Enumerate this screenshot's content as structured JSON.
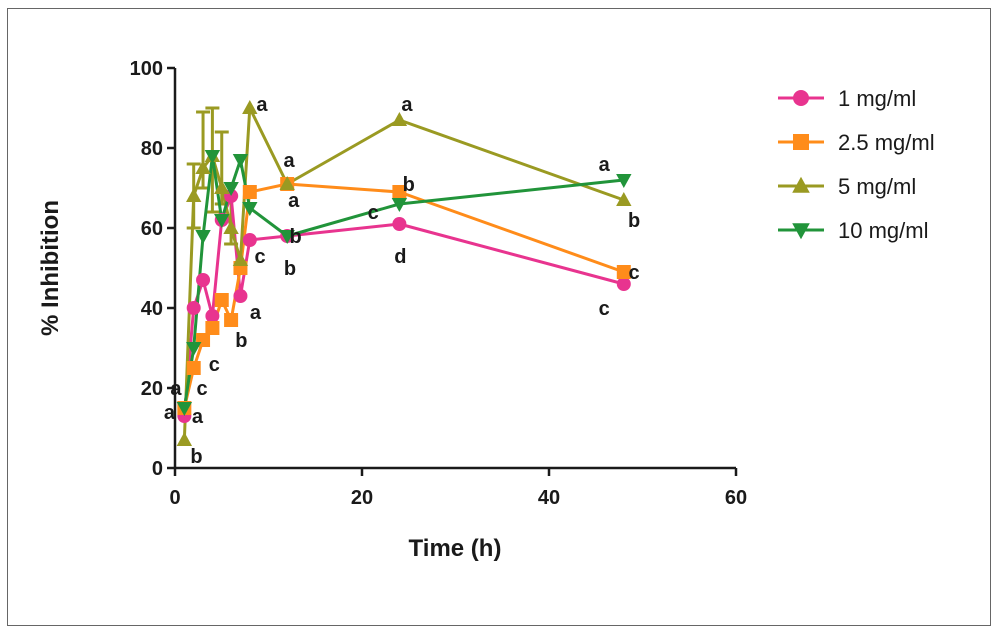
{
  "chart_data": {
    "type": "line",
    "title": "",
    "xlabel": "Time (h)",
    "ylabel": "% Inhibition",
    "xlim": [
      0,
      60
    ],
    "ylim": [
      0,
      100
    ],
    "xticks": [
      0,
      20,
      40,
      60
    ],
    "yticks": [
      0,
      20,
      40,
      60,
      80,
      100
    ],
    "grid": false,
    "legend_position": "right",
    "series": [
      {
        "name": "1 mg/ml",
        "color": "#e8348f",
        "marker": "circle",
        "x": [
          1,
          2,
          3,
          4,
          5,
          6,
          7,
          8,
          12,
          24,
          48
        ],
        "y": [
          13,
          40,
          47,
          38,
          62,
          68,
          43,
          57,
          58,
          61,
          46
        ]
      },
      {
        "name": "2.5 mg/ml",
        "color": "#ff8c1a",
        "marker": "square",
        "x": [
          1,
          2,
          3,
          4,
          5,
          6,
          7,
          8,
          12,
          24,
          48
        ],
        "y": [
          15,
          25,
          32,
          35,
          42,
          37,
          50,
          69,
          71,
          69,
          49
        ]
      },
      {
        "name": "5 mg/ml",
        "color": "#9a9a22",
        "marker": "triangle-up",
        "x": [
          1,
          2,
          3,
          4,
          5,
          6,
          7,
          8,
          12,
          24,
          48
        ],
        "y": [
          7,
          68,
          75,
          78,
          70,
          60,
          52,
          90,
          71,
          87,
          67
        ]
      },
      {
        "name": "10 mg/ml",
        "color": "#21943a",
        "marker": "triangle-down",
        "x": [
          1,
          2,
          3,
          4,
          5,
          6,
          7,
          8,
          12,
          24,
          48
        ],
        "y": [
          15,
          30,
          58,
          78,
          62,
          70,
          77,
          65,
          58,
          66,
          72
        ]
      }
    ],
    "error_bars": [
      {
        "series": "5 mg/ml",
        "x": 2,
        "low": 60,
        "high": 76
      },
      {
        "series": "5 mg/ml",
        "x": 3,
        "low": 70,
        "high": 89
      },
      {
        "series": "5 mg/ml",
        "x": 4,
        "low": 64,
        "high": 90
      },
      {
        "series": "5 mg/ml",
        "x": 5,
        "low": 66,
        "high": 84
      },
      {
        "series": "5 mg/ml",
        "x": 6,
        "low": 56,
        "high": 68
      }
    ],
    "annotations": [
      {
        "text": "a",
        "x": 0.1,
        "y": 20
      },
      {
        "text": "a",
        "x": -0.6,
        "y": 14
      },
      {
        "text": "a",
        "x": 2.4,
        "y": 13
      },
      {
        "text": "b",
        "x": 2.3,
        "y": 3
      },
      {
        "text": "c",
        "x": 2.9,
        "y": 20
      },
      {
        "text": "c",
        "x": 4.2,
        "y": 26
      },
      {
        "text": "a",
        "x": 8.6,
        "y": 39
      },
      {
        "text": "b",
        "x": 7.1,
        "y": 32
      },
      {
        "text": "a",
        "x": 9.3,
        "y": 91
      },
      {
        "text": "c",
        "x": 9.1,
        "y": 53
      },
      {
        "text": "a",
        "x": 12.2,
        "y": 77
      },
      {
        "text": "a",
        "x": 12.7,
        "y": 67
      },
      {
        "text": "b",
        "x": 12.9,
        "y": 58
      },
      {
        "text": "b",
        "x": 12.3,
        "y": 50
      },
      {
        "text": "a",
        "x": 24.8,
        "y": 91
      },
      {
        "text": "b",
        "x": 25.0,
        "y": 71
      },
      {
        "text": "c",
        "x": 21.2,
        "y": 64
      },
      {
        "text": "d",
        "x": 24.1,
        "y": 53
      },
      {
        "text": "a",
        "x": 45.9,
        "y": 76
      },
      {
        "text": "b",
        "x": 49.1,
        "y": 62
      },
      {
        "text": "c",
        "x": 49.1,
        "y": 49
      },
      {
        "text": "c",
        "x": 45.9,
        "y": 40
      }
    ]
  }
}
